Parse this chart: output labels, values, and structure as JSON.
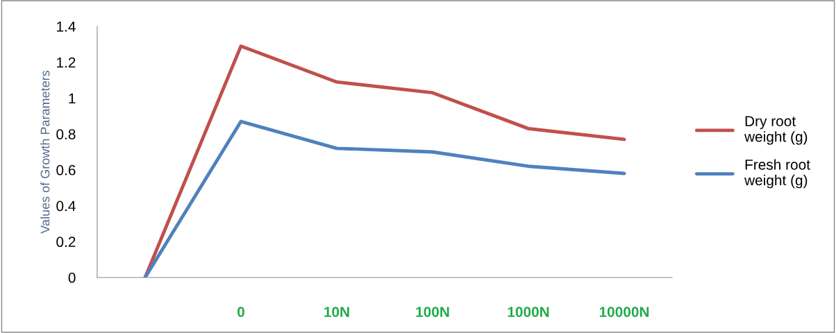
{
  "chart_data": {
    "type": "line",
    "ylabel": "Values of Growth Parameters",
    "categories": [
      null,
      "0",
      "10N",
      "100N",
      "1000N",
      "10000N"
    ],
    "series": [
      {
        "name": "Dry root\nweight (g)",
        "color": "#c0504d",
        "values": [
          0,
          1.29,
          1.09,
          1.03,
          0.83,
          0.77
        ]
      },
      {
        "name": "Fresh root\nweight (g)",
        "color": "#4f81bd",
        "values": [
          0,
          0.87,
          0.72,
          0.7,
          0.62,
          0.58
        ]
      }
    ],
    "ylim": [
      0,
      1.4
    ],
    "yticks": [
      0,
      0.2,
      0.4,
      0.6,
      0.8,
      1,
      1.2,
      1.4
    ],
    "grid": false,
    "legend": "right",
    "marker": "none",
    "line_style": "solid"
  }
}
